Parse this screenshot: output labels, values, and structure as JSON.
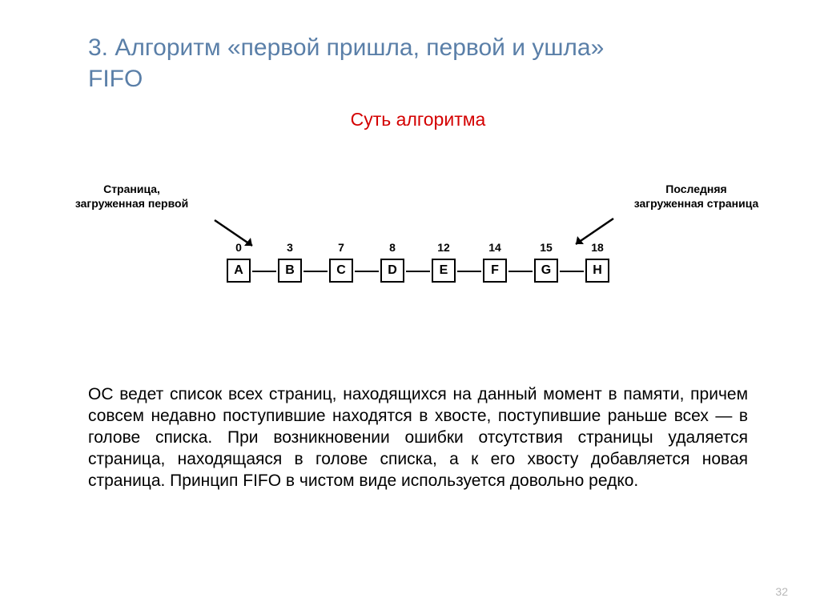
{
  "title_line1": "3. Алгоритм «первой пришла, первой и ушла»",
  "title_line2": "FIFO",
  "subtitle": "Суть алгоритма",
  "subtitle_color": "#d40000",
  "title_color": "#5a7fa8",
  "label_left_l1": "Страница,",
  "label_left_l2": "загруженная первой",
  "label_right_l1": "Последняя",
  "label_right_l2": "загруженная страница",
  "nodes": [
    {
      "num": "0",
      "letter": "A"
    },
    {
      "num": "3",
      "letter": "B"
    },
    {
      "num": "7",
      "letter": "C"
    },
    {
      "num": "8",
      "letter": "D"
    },
    {
      "num": "12",
      "letter": "E"
    },
    {
      "num": "14",
      "letter": "F"
    },
    {
      "num": "15",
      "letter": "G"
    },
    {
      "num": "18",
      "letter": "H"
    }
  ],
  "node_border_color": "#000000",
  "link_color": "#000000",
  "body_text": "ОС ведет список всех страниц, находящихся на данный момент в памяти, причем совсем недавно поступившие находятся в хвосте, поступившие раньше всех — в голове списка. При возникновении ошибки отсутствия страницы удаляется страница, находящаяся в голове списка, а к его хвосту добавляется новая страница. Принцип FIFO в  чистом виде используется довольно редко.",
  "page_number": "32",
  "page_number_color": "#b8b8b8",
  "background_color": "#ffffff",
  "fontsize_title": 30,
  "fontsize_subtitle": 23,
  "fontsize_body": 21,
  "fontsize_label": 14,
  "fontsize_node": 16
}
